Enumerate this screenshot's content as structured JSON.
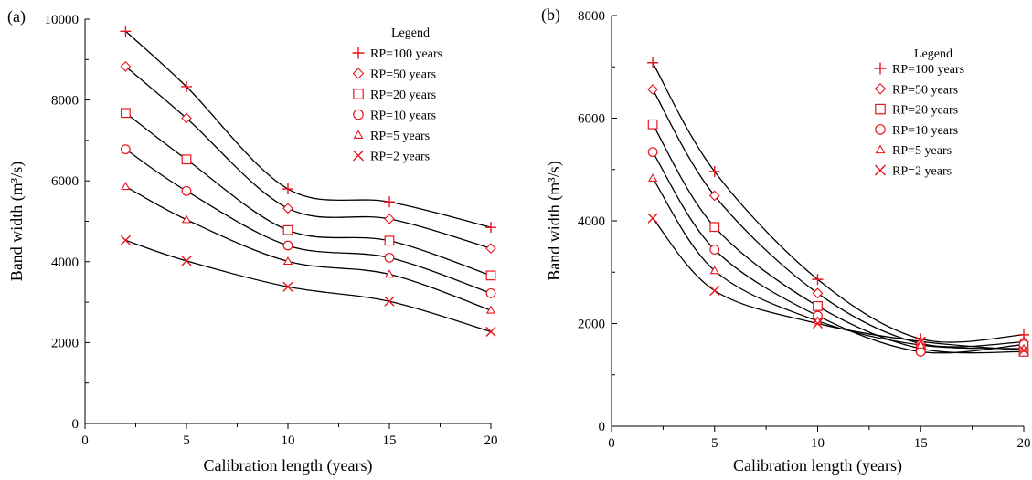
{
  "chart_data": [
    {
      "type": "line",
      "panel_label": "(a)",
      "xlabel": "Calibration length (years)",
      "ylabel": "Band width (m³/s)",
      "xlim": [
        0,
        20
      ],
      "ylim": [
        0,
        10000
      ],
      "xticks": [
        0,
        5,
        10,
        15,
        20
      ],
      "yticks": [
        0,
        2000,
        4000,
        6000,
        8000,
        10000
      ],
      "grid": false,
      "legend_title": "Legend",
      "legend_position": "top-right",
      "x": [
        2,
        5,
        10,
        15,
        20
      ],
      "series": [
        {
          "name": "RP=100 years",
          "marker": "plus",
          "values": [
            9700,
            8330,
            5800,
            5480,
            4850
          ]
        },
        {
          "name": "RP=50 years",
          "marker": "diamond",
          "values": [
            8830,
            7550,
            5320,
            5060,
            4330
          ]
        },
        {
          "name": "RP=20 years",
          "marker": "square",
          "values": [
            7680,
            6530,
            4780,
            4520,
            3660
          ]
        },
        {
          "name": "RP=10 years",
          "marker": "circle",
          "values": [
            6780,
            5750,
            4400,
            4100,
            3220
          ]
        },
        {
          "name": "RP=5 years",
          "marker": "triangle",
          "values": [
            5860,
            5040,
            4010,
            3690,
            2800
          ]
        },
        {
          "name": "RP=2 years",
          "marker": "x",
          "values": [
            4530,
            4020,
            3380,
            3020,
            2270
          ]
        }
      ]
    },
    {
      "type": "line",
      "panel_label": "(b)",
      "xlabel": "Calibration length (years)",
      "ylabel": "Band width (m³/s)",
      "xlim": [
        0,
        20
      ],
      "ylim": [
        0,
        8000
      ],
      "xticks": [
        0,
        5,
        10,
        15,
        20
      ],
      "yticks": [
        0,
        2000,
        4000,
        6000,
        8000
      ],
      "grid": false,
      "legend_title": "Legend",
      "legend_position": "top-right",
      "x": [
        2,
        5,
        10,
        15,
        20
      ],
      "series": [
        {
          "name": "RP=100 years",
          "marker": "plus",
          "values": [
            7080,
            4960,
            2860,
            1700,
            1780
          ]
        },
        {
          "name": "RP=50 years",
          "marker": "diamond",
          "values": [
            6560,
            4490,
            2590,
            1610,
            1640
          ]
        },
        {
          "name": "RP=20 years",
          "marker": "square",
          "values": [
            5880,
            3880,
            2340,
            1510,
            1450
          ]
        },
        {
          "name": "RP=10 years",
          "marker": "circle",
          "values": [
            5340,
            3440,
            2150,
            1450,
            1590
          ]
        },
        {
          "name": "RP=5 years",
          "marker": "triangle",
          "values": [
            4830,
            3030,
            2050,
            1580,
            1510
          ]
        },
        {
          "name": "RP=2 years",
          "marker": "x",
          "values": [
            4050,
            2640,
            2000,
            1650,
            1480
          ]
        }
      ]
    }
  ],
  "colors": {
    "marker": "#e8141b",
    "curve": "#000000",
    "axis": "#000000"
  }
}
